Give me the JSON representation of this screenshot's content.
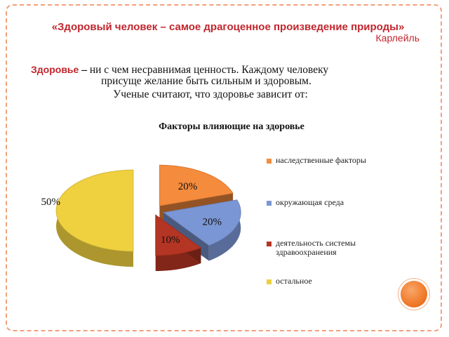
{
  "slide": {
    "quote": "«Здоровый человек – самое драгоценное произведение природы»",
    "author": "Карлейль",
    "term": "Здоровье",
    "dash": " – ",
    "definition_line1": "ни с чем несравнимая ценность. Каждому человеку",
    "definition_line2": "присуще желание быть сильным и здоровым.",
    "subline": "Ученые считают, что здоровье зависит от:"
  },
  "colors": {
    "accent": "#c0262d",
    "orange": "#f58b3c",
    "blue": "#7b96d4",
    "red": "#b43523",
    "yellow": "#efd03e"
  },
  "chart_data": {
    "type": "pie",
    "title": "Факторы влияющие на здоровье",
    "three_d": true,
    "exploded": true,
    "legend_placement": "right",
    "categories": [
      "наследственные факторы",
      "окружающая среда",
      "деятельность системы здравоохранения",
      "остальное"
    ],
    "values": [
      20,
      20,
      10,
      50
    ],
    "data_labels": [
      "20%",
      "20%",
      "10%",
      "50%"
    ],
    "colors": [
      "#f58b3c",
      "#7b96d4",
      "#b43523",
      "#efd03e"
    ]
  }
}
